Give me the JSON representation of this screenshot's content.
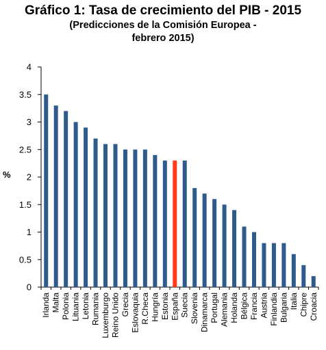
{
  "chart_data": {
    "type": "bar",
    "title": "Gráfico 1: Tasa de crecimiento del PIB - 2015",
    "subtitle_line1": "(Predicciones de la Comisión Europea -",
    "subtitle_line2": "febrero 2015)",
    "xlabel": "",
    "ylabel": "%",
    "ylim": [
      0,
      4
    ],
    "yticks": [
      "0",
      "0.5",
      "1",
      "1.5",
      "2",
      "2.5",
      "3",
      "3.5",
      "4"
    ],
    "grid": false,
    "categories": [
      "Irlanda",
      "Malta",
      "Polonia",
      "Lituania",
      "Letonia",
      "Rumania",
      "Luxemburgo",
      "Reino Unido",
      "Grecia",
      "Eslovaquia",
      "R.Checa",
      "Hungría",
      "Estonia",
      "España",
      "Suecia",
      "Slovenia",
      "Dinamarca",
      "Portugal",
      "Alemania",
      "Holanda",
      "Bélgica",
      "Francia",
      "Austria",
      "Finlandia",
      "Bulgaria",
      "Italia",
      "Chipre",
      "Croacia"
    ],
    "values": [
      3.5,
      3.3,
      3.2,
      3.0,
      2.9,
      2.7,
      2.6,
      2.6,
      2.5,
      2.5,
      2.5,
      2.4,
      2.3,
      2.3,
      2.3,
      1.8,
      1.7,
      1.6,
      1.5,
      1.4,
      1.1,
      1.0,
      0.8,
      0.8,
      0.8,
      0.6,
      0.4,
      0.2
    ],
    "highlight": "España",
    "colors": {
      "bar": "#2f5b8c",
      "highlight": "#ff3b1a",
      "axis": "#000000"
    }
  }
}
